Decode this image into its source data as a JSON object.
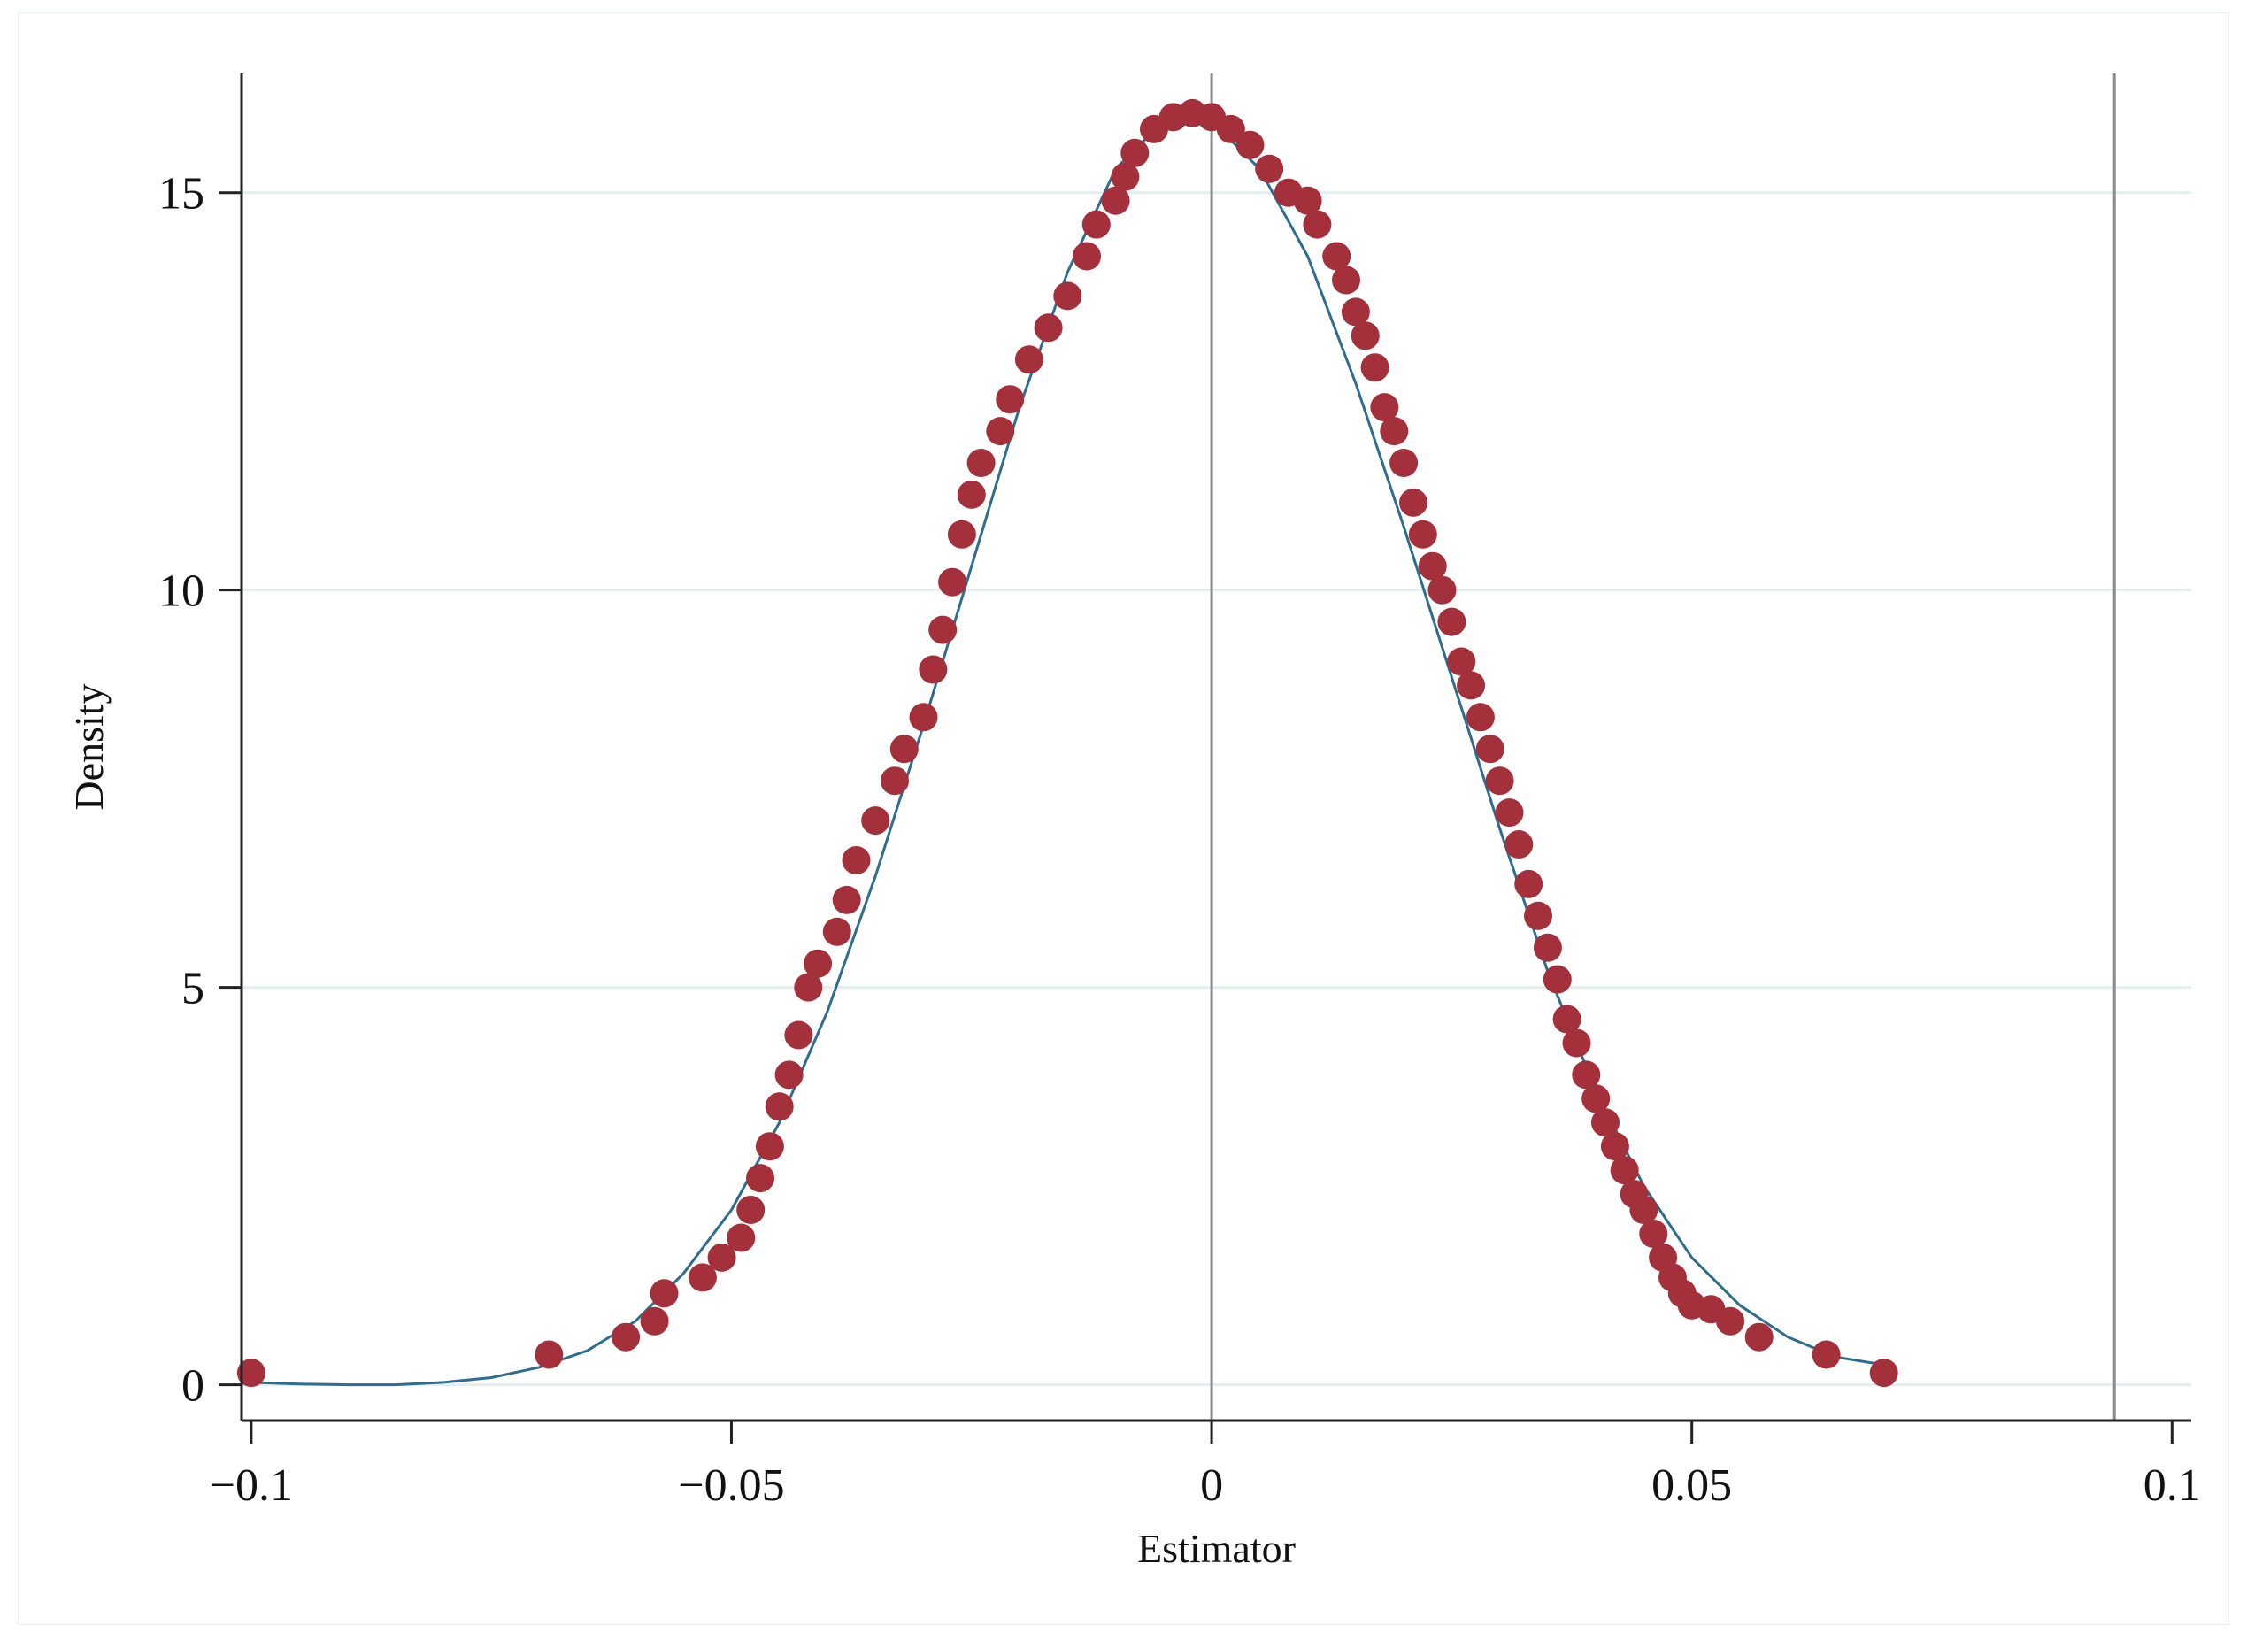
{
  "chart_data": {
    "type": "scatter",
    "title": "",
    "xlabel": "Estimator",
    "ylabel": "Density",
    "xlim": [
      -0.101,
      0.102
    ],
    "ylim": [
      -0.45,
      16.5
    ],
    "xticks": [
      {
        "value": -0.1,
        "label": "−0.1"
      },
      {
        "value": -0.05,
        "label": "−0.05"
      },
      {
        "value": 0,
        "label": "0"
      },
      {
        "value": 0.05,
        "label": "0.05"
      },
      {
        "value": 0.1,
        "label": "0.1"
      }
    ],
    "yticks": [
      {
        "value": 0,
        "label": "0"
      },
      {
        "value": 5,
        "label": "5"
      },
      {
        "value": 10,
        "label": "10"
      },
      {
        "value": 15,
        "label": "15"
      }
    ],
    "grid": {
      "horizontal": true,
      "vertical": false,
      "color": "#e3eef1"
    },
    "reference_lines_x": [
      0,
      0.094
    ],
    "legend": "none",
    "series": [
      {
        "kind": "kernel-density-points",
        "color": "#a3303a",
        "points": [
          [
            -0.1,
            0.15
          ],
          [
            -0.069,
            0.38
          ],
          [
            -0.061,
            0.6
          ],
          [
            -0.058,
            0.8
          ],
          [
            -0.057,
            1.15
          ],
          [
            -0.053,
            1.35
          ],
          [
            -0.051,
            1.6
          ],
          [
            -0.049,
            1.85
          ],
          [
            -0.048,
            2.2
          ],
          [
            -0.047,
            2.6
          ],
          [
            -0.046,
            3.0
          ],
          [
            -0.045,
            3.5
          ],
          [
            -0.044,
            3.9
          ],
          [
            -0.043,
            4.4
          ],
          [
            -0.042,
            5.0
          ],
          [
            -0.041,
            5.3
          ],
          [
            -0.039,
            5.7
          ],
          [
            -0.038,
            6.1
          ],
          [
            -0.037,
            6.6
          ],
          [
            -0.035,
            7.1
          ],
          [
            -0.033,
            7.6
          ],
          [
            -0.032,
            8.0
          ],
          [
            -0.03,
            8.4
          ],
          [
            -0.029,
            9.0
          ],
          [
            -0.028,
            9.5
          ],
          [
            -0.027,
            10.1
          ],
          [
            -0.026,
            10.7
          ],
          [
            -0.025,
            11.2
          ],
          [
            -0.024,
            11.6
          ],
          [
            -0.022,
            12.0
          ],
          [
            -0.021,
            12.4
          ],
          [
            -0.019,
            12.9
          ],
          [
            -0.017,
            13.3
          ],
          [
            -0.015,
            13.7
          ],
          [
            -0.013,
            14.2
          ],
          [
            -0.012,
            14.6
          ],
          [
            -0.01,
            14.9
          ],
          [
            -0.009,
            15.2
          ],
          [
            -0.008,
            15.5
          ],
          [
            -0.006,
            15.8
          ],
          [
            -0.004,
            15.95
          ],
          [
            -0.002,
            16.0
          ],
          [
            0.0,
            15.95
          ],
          [
            0.002,
            15.8
          ],
          [
            0.004,
            15.6
          ],
          [
            0.006,
            15.3
          ],
          [
            0.008,
            15.0
          ],
          [
            0.01,
            14.9
          ],
          [
            0.011,
            14.6
          ],
          [
            0.013,
            14.2
          ],
          [
            0.014,
            13.9
          ],
          [
            0.015,
            13.5
          ],
          [
            0.016,
            13.2
          ],
          [
            0.017,
            12.8
          ],
          [
            0.018,
            12.3
          ],
          [
            0.019,
            12.0
          ],
          [
            0.02,
            11.6
          ],
          [
            0.021,
            11.1
          ],
          [
            0.022,
            10.7
          ],
          [
            0.023,
            10.3
          ],
          [
            0.024,
            10.0
          ],
          [
            0.025,
            9.6
          ],
          [
            0.026,
            9.1
          ],
          [
            0.027,
            8.8
          ],
          [
            0.028,
            8.4
          ],
          [
            0.029,
            8.0
          ],
          [
            0.03,
            7.6
          ],
          [
            0.031,
            7.2
          ],
          [
            0.032,
            6.8
          ],
          [
            0.033,
            6.3
          ],
          [
            0.034,
            5.9
          ],
          [
            0.035,
            5.5
          ],
          [
            0.036,
            5.1
          ],
          [
            0.037,
            4.6
          ],
          [
            0.038,
            4.3
          ],
          [
            0.039,
            3.9
          ],
          [
            0.04,
            3.6
          ],
          [
            0.041,
            3.3
          ],
          [
            0.042,
            3.0
          ],
          [
            0.043,
            2.7
          ],
          [
            0.044,
            2.4
          ],
          [
            0.045,
            2.2
          ],
          [
            0.046,
            1.9
          ],
          [
            0.047,
            1.6
          ],
          [
            0.048,
            1.35
          ],
          [
            0.049,
            1.15
          ],
          [
            0.05,
            1.0
          ],
          [
            0.052,
            0.95
          ],
          [
            0.054,
            0.8
          ],
          [
            0.057,
            0.6
          ],
          [
            0.064,
            0.38
          ],
          [
            0.07,
            0.15
          ]
        ]
      },
      {
        "kind": "normal-density-curve",
        "color": "#2f6d8f",
        "x": [
          -0.1,
          -0.095,
          -0.09,
          -0.085,
          -0.08,
          -0.075,
          -0.07,
          -0.065,
          -0.06,
          -0.055,
          -0.05,
          -0.045,
          -0.04,
          -0.035,
          -0.03,
          -0.025,
          -0.02,
          -0.015,
          -0.01,
          -0.005,
          0.0,
          0.005,
          0.01,
          0.015,
          0.02,
          0.025,
          0.03,
          0.035,
          0.04,
          0.045,
          0.05,
          0.055,
          0.06,
          0.065,
          0.07
        ],
        "y": [
          0.03,
          0.01,
          0.0,
          0.0,
          0.03,
          0.09,
          0.22,
          0.43,
          0.8,
          1.4,
          2.2,
          3.3,
          4.7,
          6.4,
          8.3,
          10.3,
          12.3,
          14.0,
          15.3,
          15.9,
          15.9,
          15.3,
          14.2,
          12.6,
          10.8,
          8.9,
          7.0,
          5.2,
          3.7,
          2.5,
          1.6,
          1.0,
          0.6,
          0.35,
          0.25
        ]
      }
    ]
  }
}
